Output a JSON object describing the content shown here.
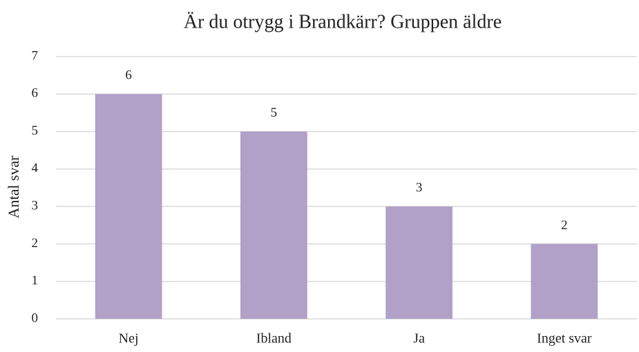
{
  "chart_data": {
    "type": "bar",
    "title": "Är du otrygg i Brandkärr? Gruppen äldre",
    "y_label": "Antal svar",
    "categories": [
      "Nej",
      "Ibland",
      "Ja",
      "Inget svar"
    ],
    "values": [
      6,
      5,
      3,
      2
    ],
    "color": "#b1a0c7",
    "ylim": [
      0,
      7
    ],
    "yticks": [
      0,
      1,
      2,
      3,
      4,
      5,
      6,
      7
    ],
    "grid": true
  }
}
